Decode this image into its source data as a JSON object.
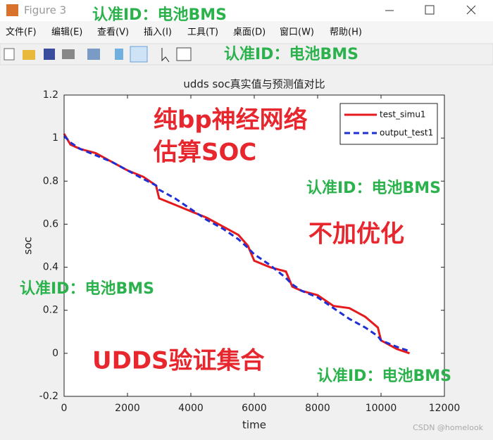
{
  "window": {
    "title": "Figure 3",
    "menu": [
      "文件(F)",
      "编辑(E)",
      "查看(V)",
      "插入(I)",
      "工具(T)",
      "桌面(D)",
      "窗口(W)",
      "帮助(H)"
    ]
  },
  "watermarks": [
    "认准ID：电池BMS",
    "认准ID：电池BMS",
    "认准ID：电池BMS",
    "认准ID：电池BMS",
    "认准ID：电池BMS"
  ],
  "annotations": [
    "纯bp神经网络",
    "估算SOC",
    "不加优化",
    "UDDS验证集合"
  ],
  "credit": "CSDN @homelook",
  "chart_data": {
    "type": "line",
    "title": "udds soc真实值与预测值对比",
    "xlabel": "time",
    "ylabel": "soc",
    "x": [
      0,
      200,
      500,
      1000,
      1500,
      2000,
      2500,
      2900,
      3000,
      3500,
      4000,
      4500,
      5000,
      5500,
      5800,
      6000,
      6500,
      7000,
      7200,
      7500,
      8000,
      8500,
      9000,
      9500,
      9900,
      10000,
      10500,
      10900
    ],
    "series": [
      {
        "name": "test_simu1",
        "color": "#e41a1c",
        "style": "solid",
        "values": [
          1.02,
          0.97,
          0.95,
          0.93,
          0.89,
          0.85,
          0.82,
          0.78,
          0.72,
          0.69,
          0.66,
          0.63,
          0.59,
          0.55,
          0.5,
          0.43,
          0.4,
          0.38,
          0.31,
          0.29,
          0.27,
          0.22,
          0.21,
          0.17,
          0.12,
          0.06,
          0.02,
          0.0
        ]
      },
      {
        "name": "output_test1",
        "color": "#1f2fd6",
        "style": "dashed",
        "values": [
          1.01,
          0.98,
          0.95,
          0.92,
          0.89,
          0.85,
          0.81,
          0.78,
          0.76,
          0.72,
          0.67,
          0.62,
          0.58,
          0.53,
          0.49,
          0.46,
          0.41,
          0.35,
          0.32,
          0.29,
          0.26,
          0.21,
          0.16,
          0.12,
          0.08,
          0.06,
          0.03,
          0.01
        ]
      }
    ],
    "xlim": [
      0,
      12000
    ],
    "xticks": [
      0,
      2000,
      4000,
      6000,
      8000,
      10000,
      12000
    ],
    "ylim": [
      -0.2,
      1.2
    ],
    "yticks": [
      -0.2,
      0,
      0.2,
      0.4,
      0.6,
      0.8,
      1,
      1.2
    ],
    "legend": "northeast"
  }
}
